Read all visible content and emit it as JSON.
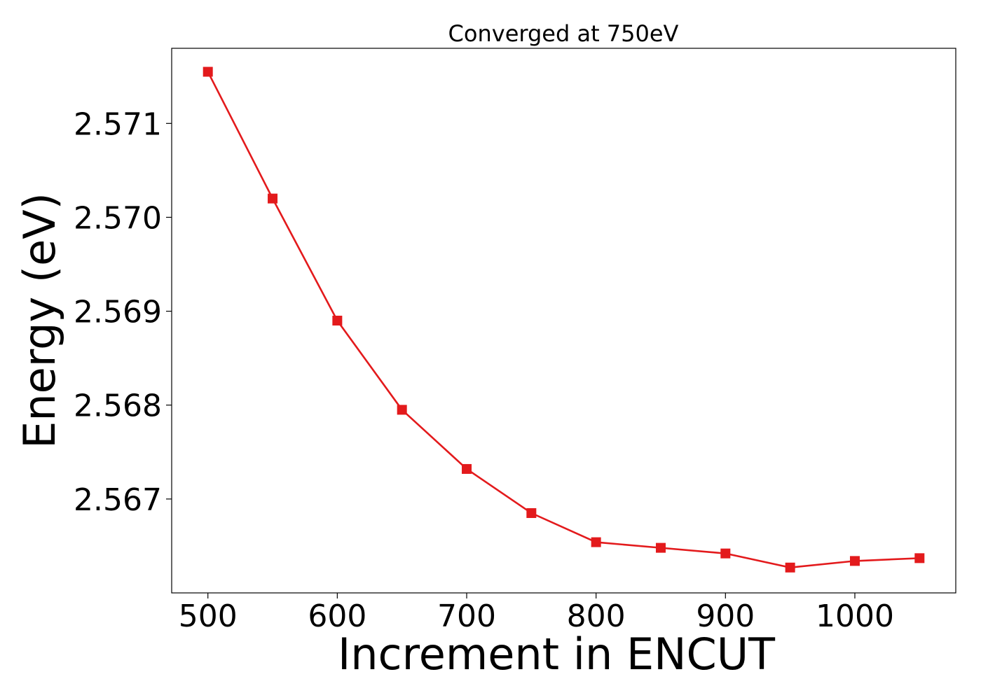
{
  "chart_data": {
    "type": "line",
    "title": "Converged at 750eV",
    "xlabel": "Increment in ENCUT",
    "ylabel": "Energy (eV)",
    "x": [
      500,
      550,
      600,
      650,
      700,
      750,
      800,
      850,
      900,
      950,
      1000,
      1050
    ],
    "series": [
      {
        "values": [
          2.57155,
          2.5702,
          2.5689,
          2.56795,
          2.56732,
          2.56685,
          2.56654,
          2.56648,
          2.56642,
          2.56627,
          2.56634,
          2.56637
        ],
        "color": "#e31a1c",
        "marker": "square"
      }
    ],
    "xlim": [
      472,
      1078
    ],
    "ylim": [
      2.566,
      2.5718
    ],
    "xticks": [
      500,
      600,
      700,
      800,
      900,
      1000
    ],
    "xtick_labels": [
      "500",
      "600",
      "700",
      "800",
      "900",
      "1000"
    ],
    "yticks": [
      2.567,
      2.568,
      2.569,
      2.57,
      2.571
    ],
    "ytick_labels": [
      "2.567",
      "2.568",
      "2.569",
      "2.570",
      "2.571"
    ],
    "grid": false,
    "legend": "none"
  }
}
